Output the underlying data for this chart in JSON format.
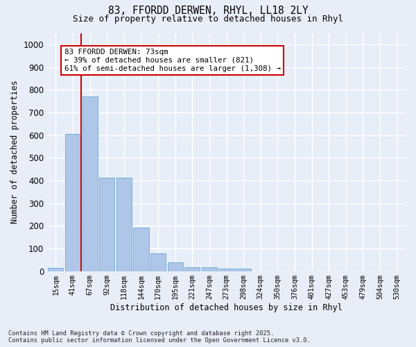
{
  "title_line1": "83, FFORDD DERWEN, RHYL, LL18 2LY",
  "title_line2": "Size of property relative to detached houses in Rhyl",
  "xlabel": "Distribution of detached houses by size in Rhyl",
  "ylabel": "Number of detached properties",
  "categories": [
    "15sqm",
    "41sqm",
    "67sqm",
    "92sqm",
    "118sqm",
    "144sqm",
    "170sqm",
    "195sqm",
    "221sqm",
    "247sqm",
    "273sqm",
    "298sqm",
    "324sqm",
    "350sqm",
    "376sqm",
    "401sqm",
    "427sqm",
    "453sqm",
    "479sqm",
    "504sqm",
    "530sqm"
  ],
  "values": [
    15,
    606,
    770,
    413,
    413,
    193,
    77,
    40,
    18,
    18,
    11,
    11,
    0,
    0,
    0,
    0,
    0,
    0,
    0,
    0,
    0
  ],
  "bar_color": "#aec6e8",
  "bar_edge_color": "#6aaad4",
  "annotation_text_line1": "83 FFORDD DERWEN: 73sqm",
  "annotation_text_line2": "← 39% of detached houses are smaller (821)",
  "annotation_text_line3": "61% of semi-detached houses are larger (1,308) →",
  "annotation_box_facecolor": "#ffffff",
  "annotation_box_edgecolor": "#cc0000",
  "vline_color": "#cc0000",
  "vline_x_index": 1.5,
  "ylim": [
    0,
    1050
  ],
  "yticks": [
    0,
    100,
    200,
    300,
    400,
    500,
    600,
    700,
    800,
    900,
    1000
  ],
  "background_color": "#e8eef8",
  "grid_color": "#ffffff",
  "footnote_line1": "Contains HM Land Registry data © Crown copyright and database right 2025.",
  "footnote_line2": "Contains public sector information licensed under the Open Government Licence v3.0."
}
